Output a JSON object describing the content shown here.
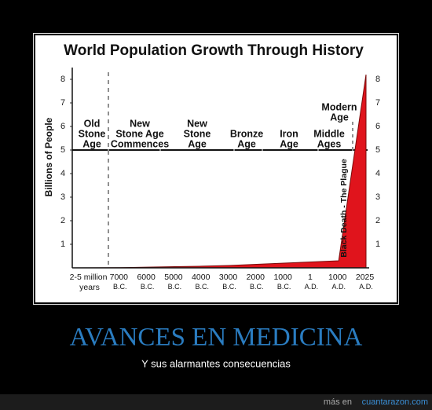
{
  "chart_data": {
    "type": "area",
    "title": "World Population Growth Through History",
    "y_label": "Billions of People",
    "categories": [
      "2-5 million years",
      "7000 B.C.",
      "6000 B.C.",
      "5000 B.C.",
      "4000 B.C.",
      "3000 B.C.",
      "2000 B.C.",
      "1000 B.C.",
      "1 A.D.",
      "1000 A.D.",
      "2025 A.D."
    ],
    "values": [
      0,
      0.01,
      0.03,
      0.05,
      0.07,
      0.1,
      0.15,
      0.2,
      0.25,
      0.3,
      8.2
    ],
    "color": "#e0141c",
    "ylim": [
      0,
      8.5
    ],
    "yticks": [
      1,
      2,
      3,
      4,
      5,
      6,
      7,
      8
    ],
    "eras": [
      [
        "Old",
        "Stone",
        "Age"
      ],
      [
        "New",
        "Stone Age",
        "Commences"
      ],
      [
        "New",
        "Stone",
        "Age"
      ],
      [
        "Bronze",
        "Age"
      ],
      [
        "Iron",
        "Age"
      ],
      [
        "Middle",
        "Ages"
      ],
      [
        "Modern",
        "Age"
      ]
    ],
    "annotation": "Black Death - The Plague"
  },
  "caption": {
    "title": "AVANCES EN MEDICINA",
    "subtitle": "Y sus alarmantes consecuencias"
  },
  "footer": {
    "prefix": "más en",
    "link": "cuantarazon.com"
  }
}
